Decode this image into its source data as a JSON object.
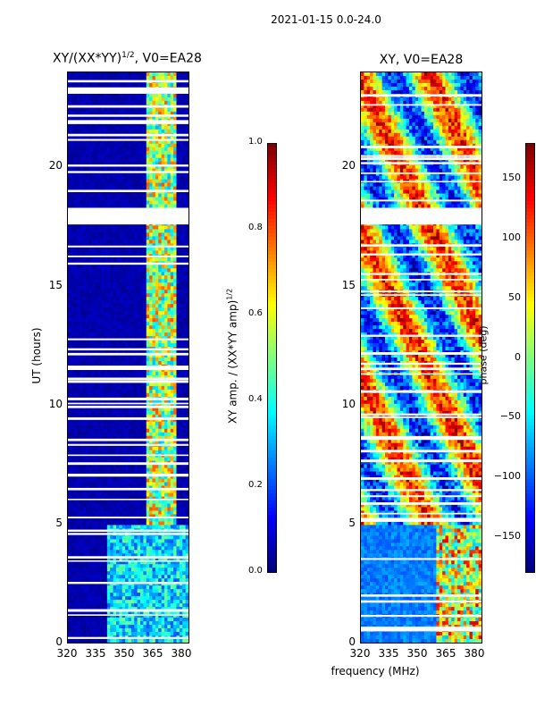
{
  "figure": {
    "suptitle": "2021-01-15 0.0-24.0",
    "xlabel": "frequency (MHz)"
  },
  "chart_data": [
    {
      "type": "heatmap",
      "title": "XY/(XX*YY)",
      "title_exponent": "1/2",
      "title_suffix": ", V0=EA28",
      "ylabel": "UT (hours)",
      "xlim": [
        320,
        384
      ],
      "ylim": [
        0,
        24
      ],
      "xticks": [
        "320",
        "335",
        "350",
        "365",
        "380"
      ],
      "xtick_values": [
        320,
        335,
        350,
        365,
        380
      ],
      "yticks": [
        "0",
        "5",
        "10",
        "15",
        "20"
      ],
      "ytick_values": [
        0,
        5,
        10,
        15,
        20
      ],
      "colorbar": {
        "label": "XY amp. / (XX*YY amp)",
        "label_exponent": "1/2",
        "range": [
          0.0,
          1.0
        ],
        "ticks": [
          "0.0",
          "0.2",
          "0.4",
          "0.6",
          "0.8",
          "1.0"
        ],
        "tick_values": [
          0.0,
          0.2,
          0.4,
          0.6,
          0.8,
          1.0
        ]
      },
      "flagged_hours": [
        [
          17.6,
          18.3
        ],
        [
          23.1,
          23.3
        ]
      ]
    },
    {
      "type": "heatmap",
      "title": "XY, V0=EA28",
      "ylabel": "",
      "xlim": [
        320,
        384
      ],
      "ylim": [
        0,
        24
      ],
      "xticks": [
        "320",
        "335",
        "350",
        "365",
        "380"
      ],
      "xtick_values": [
        320,
        335,
        350,
        365,
        380
      ],
      "yticks": [
        "0",
        "5",
        "10",
        "15",
        "20"
      ],
      "ytick_values": [
        0,
        5,
        10,
        15,
        20
      ],
      "colorbar": {
        "label": "phase (deg)",
        "range": [
          -180,
          180
        ],
        "ticks": [
          "−150",
          "−100",
          "−50",
          "0",
          "50",
          "100",
          "150"
        ],
        "tick_values": [
          -150,
          -100,
          -50,
          0,
          50,
          100,
          150
        ]
      },
      "flagged_hours": [
        [
          17.6,
          18.3
        ]
      ]
    }
  ],
  "colors": {
    "jet": [
      "#00007f",
      "#0000ff",
      "#007fff",
      "#00ffff",
      "#7fff7f",
      "#ffff00",
      "#ff7f00",
      "#ff0000",
      "#7f0000"
    ]
  }
}
